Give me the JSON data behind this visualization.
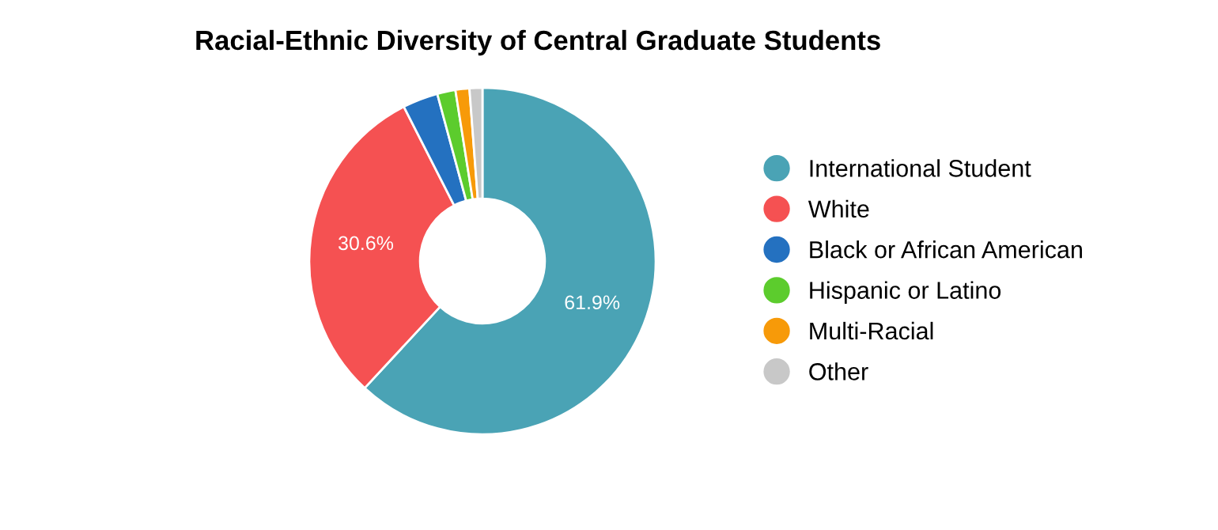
{
  "chart_data": {
    "type": "donut",
    "title": "Racial-Ethnic Diversity of Central Graduate Students",
    "categories": [
      "International Student",
      "White",
      "Black or African American",
      "Hispanic or Latino",
      "Multi-Racial",
      "Other"
    ],
    "values": [
      61.9,
      30.6,
      3.3,
      1.7,
      1.3,
      1.2
    ],
    "colors": [
      "#4aa3b5",
      "#f55152",
      "#2471c0",
      "#5ccc2d",
      "#f79a09",
      "#c8c8c8"
    ],
    "value_labels": [
      "61.9%",
      "30.6%",
      null,
      null,
      null,
      null
    ],
    "legend": "right"
  }
}
